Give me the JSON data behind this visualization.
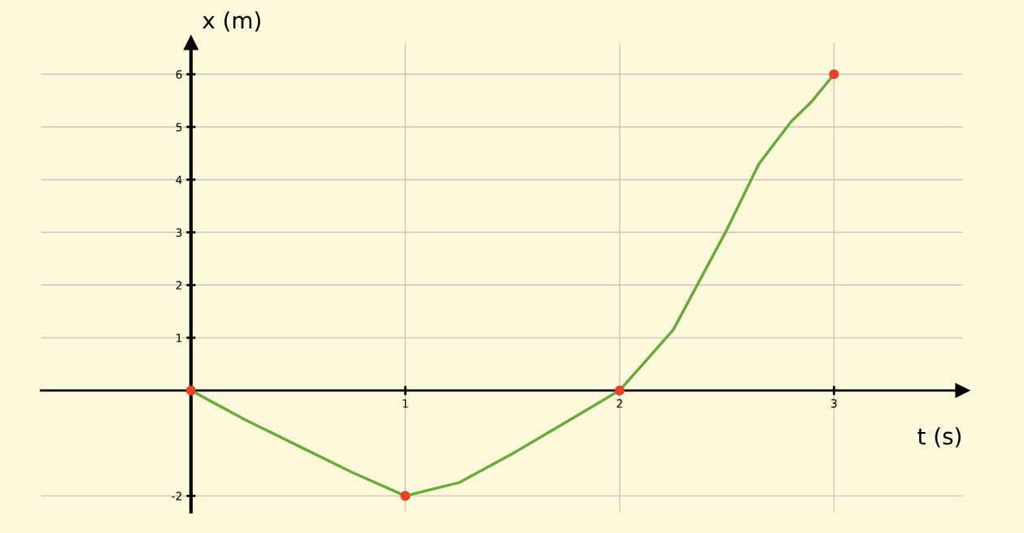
{
  "chart_data": {
    "type": "line",
    "xlabel": "t (s)",
    "ylabel": "x (m)",
    "xlim": [
      -0.7,
      3.6
    ],
    "ylim": [
      -2.3,
      6.6
    ],
    "xticks": [
      1,
      2,
      3
    ],
    "yticks": [
      -2,
      1,
      2,
      3,
      4,
      5,
      6
    ],
    "grid": true,
    "series": [
      {
        "color": "#6aaa3a",
        "x": [
          0,
          0.25,
          0.5,
          0.75,
          1,
          1.25,
          1.5,
          1.75,
          2,
          2.25,
          2.5,
          2.65,
          2.8,
          2.9,
          3
        ],
        "values": [
          0,
          -0.55,
          -1.05,
          -1.55,
          -2,
          -1.75,
          -1.2,
          -0.6,
          0,
          1.15,
          3.05,
          4.3,
          5.1,
          5.5,
          6
        ]
      },
      {
        "type": "scatter",
        "color": "#e8402a",
        "x": [
          0,
          1,
          2,
          3
        ],
        "values": [
          0,
          -2,
          0,
          6
        ]
      }
    ]
  }
}
